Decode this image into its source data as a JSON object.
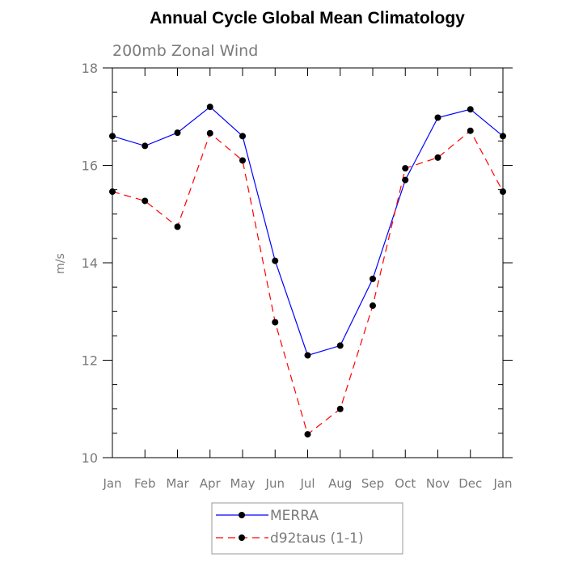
{
  "chart_data": {
    "type": "line",
    "title": "Annual Cycle Global Mean Climatology",
    "subtitle": "200mb Zonal Wind",
    "xlabel": "",
    "ylabel": "m/s",
    "categories": [
      "Jan",
      "Feb",
      "Mar",
      "Apr",
      "May",
      "Jun",
      "Jul",
      "Aug",
      "Sep",
      "Oct",
      "Nov",
      "Dec",
      "Jan"
    ],
    "ylim": [
      10,
      18
    ],
    "yticks": [
      "10",
      "12",
      "14",
      "16",
      "18"
    ],
    "grid": false,
    "legend_position": "bottom",
    "series": [
      {
        "name": "MERRA",
        "color": "#0000ff",
        "line_style": "solid",
        "marker": "dot",
        "values": [
          16.6,
          16.4,
          16.67,
          17.2,
          16.6,
          14.04,
          12.1,
          12.3,
          13.67,
          15.7,
          16.98,
          17.15,
          16.6
        ]
      },
      {
        "name": "d92taus (1-1)",
        "color": "#ff0000",
        "line_style": "dashed",
        "marker": "dot",
        "values": [
          15.46,
          15.27,
          14.74,
          16.66,
          16.1,
          12.78,
          10.48,
          11.0,
          13.12,
          15.94,
          16.16,
          16.71,
          15.46
        ]
      }
    ]
  }
}
